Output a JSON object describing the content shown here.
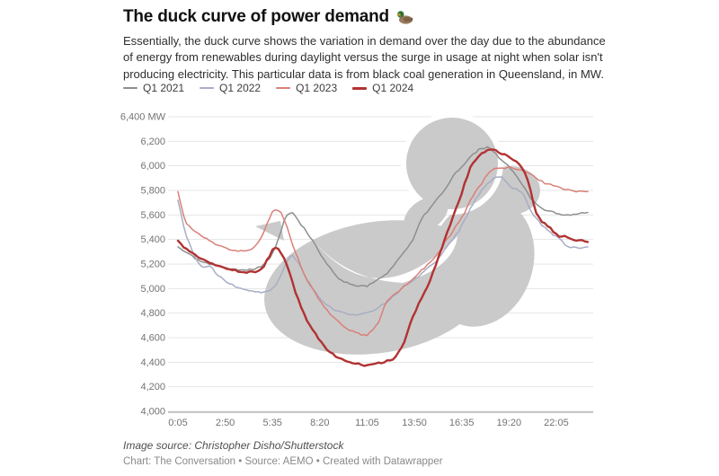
{
  "header": {
    "title": "The duck curve of power demand",
    "title_emoji": "duck-emoji",
    "description": "Essentially, the duck curve shows the variation in demand over the day due to the abundance of energy from renewables during daylight versus the surge in usage at night when solar isn't producing electricity. This particular data is from black coal generation in Queensland, in MW."
  },
  "legend": {
    "items": [
      {
        "label": "Q1 2021",
        "color": "#8e8e8e",
        "thick": false
      },
      {
        "label": "Q1 2022",
        "color": "#a8adc4",
        "thick": false
      },
      {
        "label": "Q1 2023",
        "color": "#d98078",
        "thick": false
      },
      {
        "label": "Q1 2024",
        "color": "#b23232",
        "thick": true
      }
    ]
  },
  "chart_data": {
    "type": "line",
    "unit": "MW",
    "grid": "horizontal",
    "legend_position": "top",
    "watermark": {
      "name": "duck-silhouette",
      "color": "#cacaca"
    },
    "ylim": [
      4000,
      6400
    ],
    "y_ticks": [
      {
        "label": "6,400 MW",
        "value": 6400
      },
      {
        "label": "6,200",
        "value": 6200
      },
      {
        "label": "6,000",
        "value": 6000
      },
      {
        "label": "5,800",
        "value": 5800
      },
      {
        "label": "5,600",
        "value": 5600
      },
      {
        "label": "5,400",
        "value": 5400
      },
      {
        "label": "5,200",
        "value": 5200
      },
      {
        "label": "5,000",
        "value": 5000
      },
      {
        "label": "4,800",
        "value": 4800
      },
      {
        "label": "4,600",
        "value": 4600
      },
      {
        "label": "4,400",
        "value": 4400
      },
      {
        "label": "4,200",
        "value": 4200
      },
      {
        "label": "4,000",
        "value": 4000
      }
    ],
    "x_ticks": [
      {
        "label": "0:05",
        "minute": 5
      },
      {
        "label": "2:50",
        "minute": 170
      },
      {
        "label": "5:35",
        "minute": 335
      },
      {
        "label": "8:20",
        "minute": 500
      },
      {
        "label": "11:05",
        "minute": 665
      },
      {
        "label": "13:50",
        "minute": 830
      },
      {
        "label": "16:35",
        "minute": 995
      },
      {
        "label": "19:20",
        "minute": 1160
      },
      {
        "label": "22:05",
        "minute": 1325
      }
    ],
    "x_minutes": [
      5,
      30,
      60,
      90,
      120,
      150,
      180,
      210,
      240,
      270,
      300,
      320,
      340,
      360,
      380,
      400,
      420,
      440,
      460,
      480,
      500,
      520,
      540,
      560,
      580,
      600,
      630,
      665,
      700,
      730,
      760,
      790,
      820,
      850,
      880,
      910,
      940,
      965,
      985,
      1005,
      1025,
      1045,
      1065,
      1085,
      1105,
      1130,
      1160,
      1190,
      1210,
      1230,
      1250,
      1270,
      1290,
      1310,
      1330,
      1360,
      1390,
      1435
    ],
    "series": [
      {
        "name": "Q1 2021",
        "color": "#8e8e8e",
        "width": 1.5,
        "values": [
          5340,
          5300,
          5255,
          5215,
          5195,
          5180,
          5165,
          5155,
          5150,
          5155,
          5185,
          5230,
          5300,
          5440,
          5580,
          5630,
          5575,
          5505,
          5440,
          5370,
          5290,
          5220,
          5150,
          5095,
          5060,
          5040,
          5025,
          5020,
          5065,
          5115,
          5200,
          5285,
          5375,
          5550,
          5645,
          5735,
          5820,
          5915,
          5965,
          6020,
          6075,
          6115,
          6145,
          6150,
          6120,
          6060,
          5990,
          5900,
          5830,
          5755,
          5700,
          5665,
          5640,
          5625,
          5610,
          5595,
          5600,
          5620
        ]
      },
      {
        "name": "Q1 2022",
        "color": "#a8adc4",
        "width": 1.5,
        "values": [
          5720,
          5460,
          5270,
          5165,
          5180,
          5095,
          5050,
          5010,
          4990,
          4975,
          4965,
          4975,
          5010,
          5085,
          5200,
          5280,
          5230,
          5140,
          5050,
          4980,
          4925,
          4875,
          4840,
          4815,
          4805,
          4795,
          4790,
          4800,
          4840,
          4885,
          4945,
          5010,
          5060,
          5110,
          5170,
          5230,
          5330,
          5400,
          5470,
          5560,
          5650,
          5730,
          5800,
          5855,
          5895,
          5920,
          5840,
          5800,
          5770,
          5665,
          5585,
          5530,
          5480,
          5445,
          5420,
          5350,
          5330,
          5340
        ]
      },
      {
        "name": "Q1 2023",
        "color": "#d98078",
        "width": 1.5,
        "values": [
          5790,
          5535,
          5470,
          5420,
          5385,
          5345,
          5320,
          5310,
          5310,
          5330,
          5425,
          5550,
          5650,
          5640,
          5545,
          5390,
          5270,
          5150,
          5055,
          4975,
          4900,
          4840,
          4785,
          4740,
          4700,
          4665,
          4635,
          4620,
          4700,
          4880,
          4950,
          5010,
          5070,
          5135,
          5205,
          5280,
          5390,
          5470,
          5540,
          5620,
          5720,
          5790,
          5860,
          5930,
          5970,
          5985,
          5985,
          5975,
          5970,
          5940,
          5915,
          5880,
          5855,
          5845,
          5840,
          5805,
          5795,
          5790
        ]
      },
      {
        "name": "Q1 2024",
        "color": "#b23232",
        "width": 2.4,
        "values": [
          5390,
          5330,
          5280,
          5235,
          5205,
          5180,
          5160,
          5145,
          5135,
          5130,
          5165,
          5250,
          5330,
          5315,
          5230,
          5080,
          4940,
          4820,
          4720,
          4645,
          4575,
          4515,
          4475,
          4445,
          4420,
          4400,
          4385,
          4375,
          4390,
          4405,
          4435,
          4530,
          4740,
          4905,
          5040,
          5230,
          5425,
          5590,
          5705,
          5850,
          5985,
          6050,
          6100,
          6130,
          6135,
          6105,
          6070,
          6030,
          5975,
          5860,
          5645,
          5560,
          5520,
          5480,
          5430,
          5420,
          5400,
          5380
        ]
      }
    ]
  },
  "footer": {
    "image_source": "Image source: Christopher Disho/Shutterstock",
    "credit": "Chart: The Conversation • Source: AEMO • Created with Datawrapper"
  }
}
